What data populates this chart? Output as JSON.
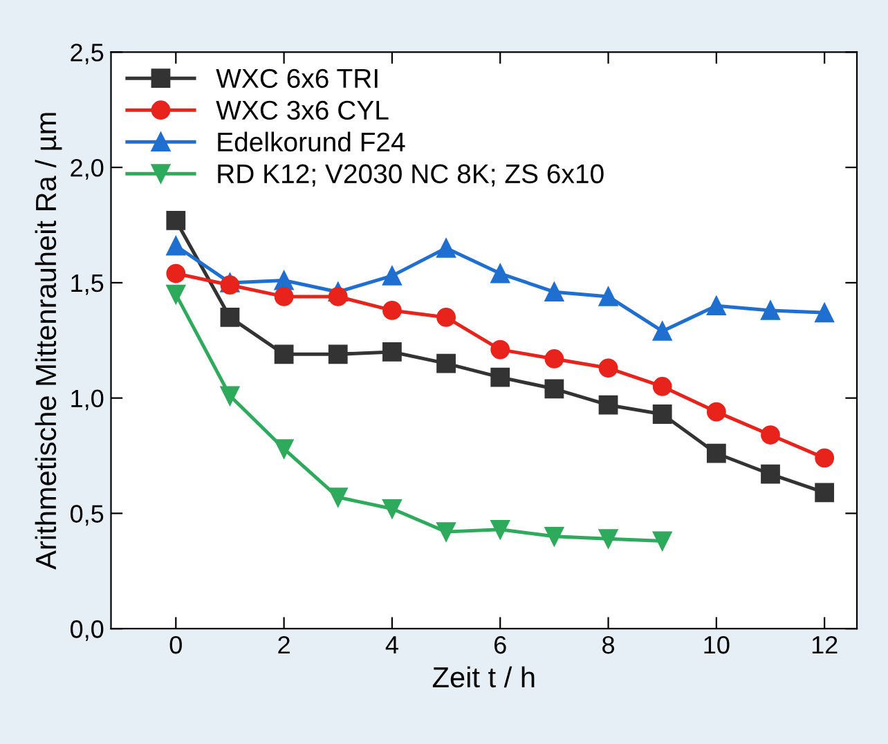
{
  "chart_data": {
    "type": "line",
    "xlabel": "Zeit t / h",
    "ylabel": "Arithmetische Mittenrauheit Ra / µm",
    "x": [
      0,
      1,
      2,
      3,
      4,
      5,
      6,
      7,
      8,
      9,
      10,
      11,
      12
    ],
    "series": [
      {
        "name": "WXC 6x6 TRI",
        "color": "#333333",
        "marker": "square",
        "values": [
          1.77,
          1.35,
          1.19,
          1.19,
          1.2,
          1.15,
          1.09,
          1.04,
          0.97,
          0.93,
          0.76,
          0.67,
          0.59
        ]
      },
      {
        "name": "WXC 3x6 CYL",
        "color": "#e8231c",
        "marker": "circle",
        "values": [
          1.54,
          1.49,
          1.44,
          1.44,
          1.38,
          1.35,
          1.21,
          1.17,
          1.13,
          1.05,
          0.94,
          0.84,
          0.74
        ]
      },
      {
        "name": "Edelkorund F24",
        "color": "#1f6fd0",
        "marker": "triangle",
        "values": [
          1.66,
          1.5,
          1.51,
          1.46,
          1.53,
          1.65,
          1.54,
          1.46,
          1.44,
          1.29,
          1.4,
          1.38,
          1.37
        ]
      },
      {
        "name": "RD K12; V2030 NC 8K; ZS 6x10",
        "color": "#2eaa5c",
        "marker": "triangle_down",
        "x": [
          0,
          1,
          2,
          3,
          4,
          5,
          6,
          7,
          8,
          9
        ],
        "values": [
          1.45,
          1.01,
          0.78,
          0.57,
          0.52,
          0.42,
          0.43,
          0.4,
          0.39,
          0.38
        ]
      }
    ],
    "xlim": [
      -1.2,
      12.6
    ],
    "xticks": [
      0,
      2,
      4,
      6,
      8,
      10,
      12
    ],
    "ylim": [
      0,
      2.5
    ],
    "yticks": [
      {
        "value": 0,
        "label": "0,0"
      },
      {
        "value": 0.5,
        "label": "0,5"
      },
      {
        "value": 1.0,
        "label": "1,0"
      },
      {
        "value": 1.5,
        "label": "1,5"
      },
      {
        "value": 2.0,
        "label": "2,0"
      },
      {
        "value": 2.5,
        "label": "2,5"
      }
    ],
    "legend": "top left",
    "grid": false,
    "line_style": "solid"
  }
}
